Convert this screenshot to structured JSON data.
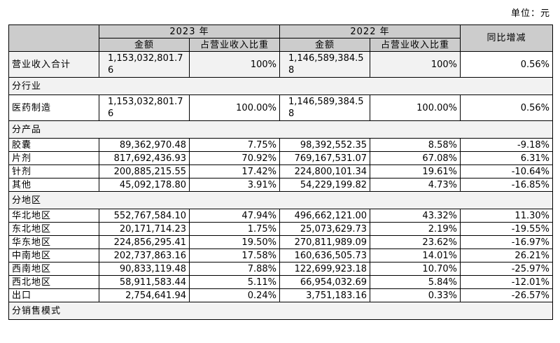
{
  "unit_label": "单位：元",
  "headers": {
    "year_2023": "2023 年",
    "year_2022": "2022 年",
    "yoy": "同比增减",
    "amount": "金额",
    "share": "占营业收入比重"
  },
  "total": {
    "label": "营业收入合计",
    "amt_2023": "1,153,032,801.76",
    "share_2023": "100%",
    "amt_2022": "1,146,589,384.58",
    "share_2022": "100%",
    "yoy": "0.56%"
  },
  "sections": {
    "industry": "分行业",
    "product": "分产品",
    "region": "分地区",
    "sales_mode": "分销售模式"
  },
  "industry_rows": [
    {
      "label": "医药制造",
      "amt_2023": "1,153,032,801.76",
      "share_2023": "100.00%",
      "amt_2022": "1,146,589,384.58",
      "share_2022": "100.00%",
      "yoy": "0.56%"
    }
  ],
  "product_rows": [
    {
      "label": "胶囊",
      "amt_2023": "89,362,970.48",
      "share_2023": "7.75%",
      "amt_2022": "98,392,552.35",
      "share_2022": "8.58%",
      "yoy": "-9.18%"
    },
    {
      "label": "片剂",
      "amt_2023": "817,692,436.93",
      "share_2023": "70.92%",
      "amt_2022": "769,167,531.07",
      "share_2022": "67.08%",
      "yoy": "6.31%"
    },
    {
      "label": "针剂",
      "amt_2023": "200,885,215.55",
      "share_2023": "17.42%",
      "amt_2022": "224,800,101.34",
      "share_2022": "19.61%",
      "yoy": "-10.64%"
    },
    {
      "label": "其他",
      "amt_2023": "45,092,178.80",
      "share_2023": "3.91%",
      "amt_2022": "54,229,199.82",
      "share_2022": "4.73%",
      "yoy": "-16.85%"
    }
  ],
  "region_rows": [
    {
      "label": "华北地区",
      "amt_2023": "552,767,584.10",
      "share_2023": "47.94%",
      "amt_2022": "496,662,121.00",
      "share_2022": "43.32%",
      "yoy": "11.30%"
    },
    {
      "label": "东北地区",
      "amt_2023": "20,171,714.23",
      "share_2023": "1.75%",
      "amt_2022": "25,073,629.73",
      "share_2022": "2.19%",
      "yoy": "-19.55%"
    },
    {
      "label": "华东地区",
      "amt_2023": "224,856,295.41",
      "share_2023": "19.50%",
      "amt_2022": "270,811,989.09",
      "share_2022": "23.62%",
      "yoy": "-16.97%"
    },
    {
      "label": "中南地区",
      "amt_2023": "202,737,863.16",
      "share_2023": "17.58%",
      "amt_2022": "160,636,505.73",
      "share_2022": "14.01%",
      "yoy": "26.21%"
    },
    {
      "label": "西南地区",
      "amt_2023": "90,833,119.48",
      "share_2023": "7.88%",
      "amt_2022": "122,699,923.18",
      "share_2022": "10.70%",
      "yoy": "-25.97%"
    },
    {
      "label": "西北地区",
      "amt_2023": "58,911,583.44",
      "share_2023": "5.11%",
      "amt_2022": "66,954,032.69",
      "share_2022": "5.84%",
      "yoy": "-12.01%"
    },
    {
      "label": "出口",
      "amt_2023": "2,754,641.94",
      "share_2023": "0.24%",
      "amt_2022": "3,751,183.16",
      "share_2022": "0.33%",
      "yoy": "-26.57%"
    }
  ]
}
